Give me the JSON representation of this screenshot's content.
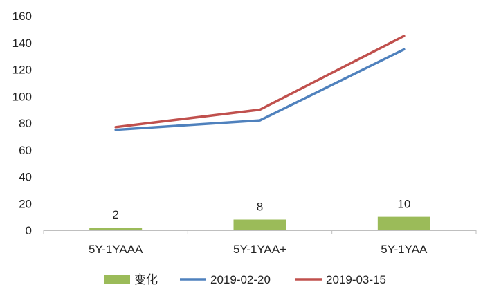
{
  "chart_data": {
    "type": "bar+line",
    "categories": [
      "5Y-1YAAA",
      "5Y-1YAA+",
      "5Y-1YAA"
    ],
    "bar_series": [
      {
        "name": "变化",
        "values": [
          2,
          8,
          10
        ],
        "color": "#9bbb59",
        "data_labels": [
          "2",
          "8",
          "10"
        ]
      }
    ],
    "line_series": [
      {
        "name": "2019-02-20",
        "values": [
          75,
          82,
          135
        ],
        "color": "#4f81bd"
      },
      {
        "name": "2019-03-15",
        "values": [
          77,
          90,
          145
        ],
        "color": "#c0504d"
      }
    ],
    "y_axis": {
      "min": 0,
      "max": 160,
      "step": 20,
      "tick_labels": [
        "0",
        "20",
        "40",
        "60",
        "80",
        "100",
        "120",
        "140",
        "160"
      ]
    },
    "grid": false,
    "legend_position": "bottom",
    "title": "",
    "xlabel": "",
    "ylabel": ""
  }
}
